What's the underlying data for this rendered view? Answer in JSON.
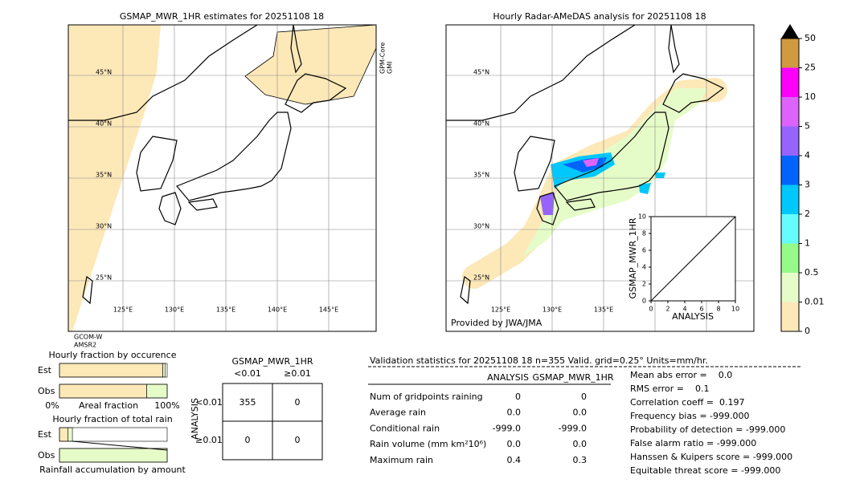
{
  "left_map": {
    "title": "GSMAP_MWR_1HR estimates for 20251108 18",
    "lat_labels": [
      "45°N",
      "40°N",
      "35°N",
      "30°N",
      "25°N"
    ],
    "lon_labels": [
      "125°E",
      "130°E",
      "135°E",
      "140°E",
      "145°E"
    ],
    "side_label": [
      "GPM-Core",
      "GMI"
    ],
    "bottom_label": [
      "GCOM-W",
      "AMSR2"
    ]
  },
  "right_map": {
    "title": "Hourly Radar-AMeDAS analysis for 20251108 18",
    "lat_labels": [
      "45°N",
      "40°N",
      "35°N",
      "30°N",
      "25°N"
    ],
    "lon_labels": [
      "125°E",
      "130°E",
      "135°E"
    ],
    "credit": "Provided by JWA/JMA"
  },
  "scatter": {
    "x_label": "ANALYSIS",
    "y_label": "GSMAP_MWR_1HR",
    "xlim": [
      0,
      10
    ],
    "ylim": [
      0,
      10
    ],
    "xticks": [
      0,
      2,
      4,
      6,
      8,
      10
    ],
    "yticks": [
      0,
      2,
      4,
      6,
      8,
      10
    ]
  },
  "colorbar": {
    "levels": [
      0,
      0.01,
      0.5,
      1,
      2,
      3,
      4,
      5,
      10,
      25,
      50
    ],
    "colors": [
      "#fde8b8",
      "#e6fcc8",
      "#96fa88",
      "#64fcfc",
      "#00c8fc",
      "#0064fc",
      "#9664fc",
      "#dc64fc",
      "#fc00fc",
      "#d09a40"
    ],
    "extend_color": "#000000"
  },
  "fraction_occurrence": {
    "title": "Hourly fraction by occurence",
    "rows": [
      "Est",
      "Obs"
    ],
    "segments": [
      [
        96,
        2
      ],
      [
        81,
        19
      ]
    ],
    "colors": [
      "#fde8b8",
      "#e6fcc8"
    ],
    "axis_labels": [
      "0%",
      "Areal fraction",
      "100%"
    ]
  },
  "fraction_total": {
    "title": "Hourly fraction of total rain",
    "rows": [
      "Est",
      "Obs"
    ],
    "segments": [
      [
        8,
        4
      ],
      [
        0,
        100
      ]
    ],
    "colors": [
      "#fde8b8",
      "#e6fcc8"
    ],
    "x_label": "Rainfall accumulation by amount"
  },
  "contingency": {
    "title": "GSMAP_MWR_1HR",
    "columns": [
      "<0.01",
      "≥0.01"
    ],
    "row_title": "ANALYSIS",
    "rows": [
      "<0.01",
      "≥0.01"
    ],
    "cells": [
      [
        "355",
        "0"
      ],
      [
        "0",
        "0"
      ]
    ]
  },
  "validation": {
    "header": "Validation statistics for 20251108 18  n=355 Valid. grid=0.25° Units=mm/hr.",
    "columns": [
      "ANALYSIS",
      "GSMAP_MWR_1HR"
    ],
    "rows": [
      [
        "Num of gridpoints raining",
        "0",
        "0"
      ],
      [
        "Average rain",
        "0.0",
        "0.0"
      ],
      [
        "Conditional rain",
        "-999.0",
        "-999.0"
      ],
      [
        "Rain volume (mm km²10⁶)",
        "0.0",
        "0.0"
      ],
      [
        "Maximum rain",
        "0.4",
        "0.3"
      ]
    ],
    "scores": [
      "Mean abs error =    0.0",
      "RMS error =    0.1",
      "Correlation coeff =  0.197",
      "Frequency bias = -999.000",
      "Probability of detection = -999.000",
      "False alarm ratio = -999.000",
      "Hanssen & Kuipers score = -999.000",
      "Equitable threat score = -999.000"
    ]
  }
}
